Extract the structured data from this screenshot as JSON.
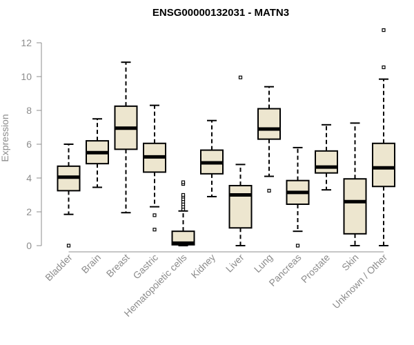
{
  "chart_data": {
    "type": "boxplot",
    "title": "ENSG00000132031 - MATN3",
    "ylabel": "Expression",
    "xlabel": "",
    "ylim": [
      0,
      13
    ],
    "yticks": [
      0,
      2,
      4,
      6,
      8,
      10,
      12
    ],
    "grid": false,
    "colors": {
      "box_fill": "#ede6cf",
      "box_stroke": "#000000",
      "median": "#000000",
      "axis": "#8c8c8c"
    },
    "categories": [
      "Bladder",
      "Brain",
      "Breast",
      "Gastric",
      "Hematopoietic cells",
      "Kidney",
      "Liver",
      "Lung",
      "Pancreas",
      "Prostate",
      "Skin",
      "Unknown / Other"
    ],
    "boxes": [
      {
        "category": "Bladder",
        "whisker_low": 1.85,
        "q1": 3.25,
        "median": 4.05,
        "q3": 4.7,
        "whisker_high": 6.0,
        "outliers": [
          0.0
        ]
      },
      {
        "category": "Brain",
        "whisker_low": 3.45,
        "q1": 4.85,
        "median": 5.5,
        "q3": 6.2,
        "whisker_high": 7.5,
        "outliers": []
      },
      {
        "category": "Breast",
        "whisker_low": 1.95,
        "q1": 5.7,
        "median": 6.95,
        "q3": 8.25,
        "whisker_high": 10.85,
        "outliers": []
      },
      {
        "category": "Gastric",
        "whisker_low": 2.3,
        "q1": 4.35,
        "median": 5.25,
        "q3": 6.05,
        "whisker_high": 8.3,
        "outliers": [
          1.8,
          0.95
        ]
      },
      {
        "category": "Hematopoietic cells",
        "whisker_low": 0.0,
        "q1": 0.05,
        "median": 0.15,
        "q3": 0.85,
        "whisker_high": 2.05,
        "outliers": [
          2.15,
          2.3,
          2.45,
          2.6,
          2.75,
          2.9,
          3.0,
          3.65,
          3.75
        ]
      },
      {
        "category": "Kidney",
        "whisker_low": 2.9,
        "q1": 4.25,
        "median": 4.9,
        "q3": 5.65,
        "whisker_high": 7.4,
        "outliers": []
      },
      {
        "category": "Liver",
        "whisker_low": 0.0,
        "q1": 1.05,
        "median": 3.0,
        "q3": 3.55,
        "whisker_high": 4.8,
        "outliers": [
          9.95
        ]
      },
      {
        "category": "Lung",
        "whisker_low": 4.1,
        "q1": 6.3,
        "median": 6.9,
        "q3": 8.1,
        "whisker_high": 9.4,
        "outliers": [
          3.25
        ]
      },
      {
        "category": "Pancreas",
        "whisker_low": 0.85,
        "q1": 2.45,
        "median": 3.15,
        "q3": 3.85,
        "whisker_high": 5.8,
        "outliers": [
          0.0
        ]
      },
      {
        "category": "Prostate",
        "whisker_low": 3.3,
        "q1": 4.3,
        "median": 4.65,
        "q3": 5.6,
        "whisker_high": 7.15,
        "outliers": []
      },
      {
        "category": "Skin",
        "whisker_low": 0.0,
        "q1": 0.7,
        "median": 2.6,
        "q3": 3.95,
        "whisker_high": 7.25,
        "outliers": []
      },
      {
        "category": "Unknown / Other",
        "whisker_low": 0.0,
        "q1": 3.5,
        "median": 4.6,
        "q3": 6.05,
        "whisker_high": 9.85,
        "outliers": [
          10.55,
          12.75
        ]
      }
    ]
  }
}
